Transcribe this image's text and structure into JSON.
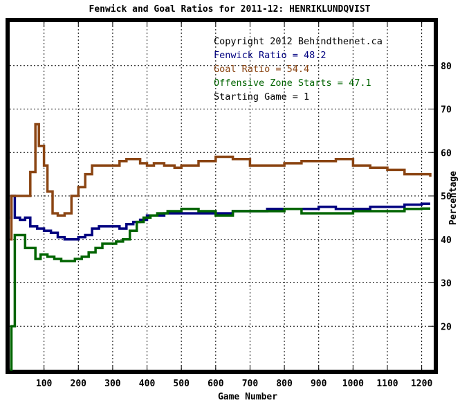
{
  "chart_data": {
    "type": "line",
    "title": "Fenwick and Goal Ratios for 2011-12: HENRIKLUNDQVIST",
    "xlabel": "Game Number",
    "ylabel": "Percentage",
    "xlim": [
      0,
      1235
    ],
    "ylim": [
      10,
      90
    ],
    "x_ticks": [
      100,
      200,
      300,
      400,
      500,
      600,
      700,
      800,
      900,
      1000,
      1100,
      1200
    ],
    "y_ticks": [
      20,
      30,
      40,
      50,
      60,
      70,
      80
    ],
    "grid": true,
    "legend_placement": "top-right",
    "annotations": [
      {
        "text": "Copyright 2012 Behindthenet.ca",
        "color": "#000000"
      },
      {
        "text": "Fenwick Ratio = 48.2",
        "color": "#000080"
      },
      {
        "text": "Goal Ratio = 54.4",
        "color": "#8B4513"
      },
      {
        "text": "Offensive Zone Starts = 47.1",
        "color": "#006400"
      },
      {
        "text": "Starting Game = 1",
        "color": "#000000"
      }
    ],
    "series": [
      {
        "name": "Fenwick Ratio",
        "color": "#000080",
        "x": [
          1,
          5,
          15,
          30,
          45,
          60,
          80,
          100,
          120,
          140,
          160,
          180,
          200,
          220,
          240,
          260,
          280,
          300,
          320,
          340,
          360,
          380,
          400,
          420,
          450,
          480,
          500,
          550,
          600,
          650,
          700,
          750,
          800,
          850,
          900,
          950,
          1000,
          1050,
          1100,
          1150,
          1200,
          1225
        ],
        "y": [
          45,
          50,
          45,
          44.5,
          45,
          43,
          42.5,
          42,
          41.5,
          40.5,
          40,
          40,
          40.5,
          41,
          42.5,
          43,
          43,
          43,
          42.5,
          43.5,
          44,
          44.5,
          45.5,
          45.5,
          46,
          46,
          46,
          46,
          46,
          46.5,
          46.5,
          47,
          47,
          47,
          47.5,
          47,
          47,
          47.5,
          47.5,
          48,
          48.2,
          48.2
        ]
      },
      {
        "name": "Goal Ratio",
        "color": "#8B4513",
        "x": [
          1,
          5,
          15,
          30,
          45,
          60,
          75,
          85,
          100,
          110,
          125,
          140,
          160,
          180,
          200,
          220,
          240,
          260,
          280,
          300,
          320,
          340,
          360,
          380,
          400,
          420,
          450,
          480,
          500,
          550,
          600,
          650,
          700,
          750,
          800,
          850,
          900,
          950,
          1000,
          1050,
          1100,
          1150,
          1200,
          1225
        ],
        "y": [
          40,
          50,
          50,
          50,
          50,
          55.5,
          66.5,
          61.5,
          57,
          51,
          46,
          45.5,
          46,
          50,
          52,
          55,
          57,
          57,
          57,
          57,
          58,
          58.5,
          58.5,
          57.5,
          57,
          57.5,
          57,
          56.5,
          57,
          58,
          59,
          58.5,
          57,
          57,
          57.5,
          58,
          58,
          58.5,
          57,
          56.5,
          56,
          55,
          55,
          54.4
        ]
      },
      {
        "name": "Offensive Zone Starts",
        "color": "#006400",
        "x": [
          1,
          5,
          15,
          30,
          45,
          60,
          75,
          90,
          110,
          130,
          150,
          170,
          190,
          210,
          230,
          250,
          270,
          290,
          310,
          330,
          350,
          370,
          390,
          410,
          430,
          460,
          500,
          550,
          600,
          650,
          700,
          750,
          800,
          850,
          900,
          950,
          1000,
          1050,
          1100,
          1150,
          1200,
          1225
        ],
        "y": [
          10,
          20,
          41,
          41,
          38,
          38,
          35.5,
          36.5,
          36,
          35.5,
          35,
          35,
          35.5,
          36,
          37,
          38,
          39,
          39,
          39.5,
          40,
          42,
          44,
          45,
          45.5,
          46,
          46.5,
          47,
          46.5,
          45.5,
          46.5,
          46.5,
          46.5,
          47,
          46,
          46,
          46,
          46.5,
          46.5,
          46.5,
          47,
          47.1,
          47.1
        ]
      }
    ]
  }
}
